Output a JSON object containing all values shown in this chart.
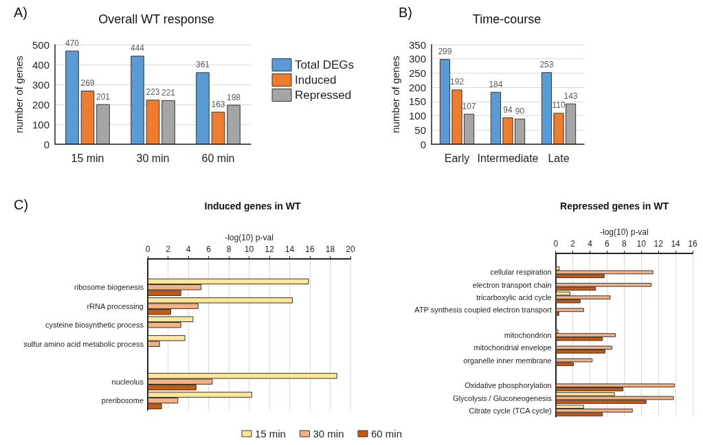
{
  "chart_data": [
    {
      "type": "bar",
      "title": "Overall WT response",
      "ylabel": "number of genes",
      "categories": [
        "15 min",
        "30 min",
        "60 min"
      ],
      "series": [
        {
          "name": "Total DEGs",
          "color": "#5b9bd5",
          "values": [
            470,
            444,
            361
          ]
        },
        {
          "name": "Induced",
          "color": "#ed7d31",
          "values": [
            269,
            223,
            163
          ]
        },
        {
          "name": "Repressed",
          "color": "#a5a5a5",
          "values": [
            201,
            221,
            198
          ]
        }
      ],
      "ylim": [
        0,
        500
      ],
      "yticks": [
        0,
        100,
        200,
        300,
        400,
        500
      ],
      "grid": "y",
      "legend": "right",
      "data_labels": true,
      "annotations": [
        "A)"
      ]
    },
    {
      "type": "bar",
      "title": "Time-course",
      "ylabel": "number of genes",
      "categories": [
        "Early",
        "Intermediate",
        "Late"
      ],
      "series": [
        {
          "color": "#5b9bd5",
          "values": [
            299,
            184,
            253
          ]
        },
        {
          "color": "#ed7d31",
          "values": [
            192,
            94,
            110
          ]
        },
        {
          "color": "#a5a5a5",
          "values": [
            107,
            90,
            143
          ]
        }
      ],
      "ylim": [
        0,
        350
      ],
      "yticks": [
        0,
        50,
        100,
        150,
        200,
        250,
        300,
        350
      ],
      "grid": "y",
      "data_labels": true,
      "annotations": [
        "B)"
      ]
    },
    {
      "type": "bar",
      "orientation": "horizontal",
      "title": "Induced genes in WT",
      "xlabel": "-log(10) p-val",
      "categories": [
        null,
        "ribosome biogenesis",
        "rRNA processing",
        "cysteine biosynthetic process",
        "sulfur amino acid metabolic process",
        null,
        "nucleolus",
        "preribosome"
      ],
      "series": [
        {
          "name": "15 min",
          "color": "#ffe699",
          "values": [
            null,
            15.9,
            14.3,
            4.5,
            3.7,
            null,
            18.7,
            10.3
          ]
        },
        {
          "name": "30 min",
          "color": "#f4b183",
          "values": [
            null,
            5.3,
            5.0,
            3.3,
            1.2,
            null,
            6.4,
            3.0
          ]
        },
        {
          "name": "60 min",
          "color": "#c55a11",
          "values": [
            null,
            3.3,
            2.3,
            null,
            null,
            null,
            4.8,
            1.4
          ]
        }
      ],
      "xlim": [
        0,
        20
      ],
      "xticks": [
        0,
        2,
        4,
        6,
        8,
        10,
        12,
        14,
        16,
        18,
        20
      ],
      "grid": "x",
      "legend": "bottom",
      "annotations": [
        "C)"
      ]
    },
    {
      "type": "bar",
      "orientation": "horizontal",
      "title": "Repressed genes in WT",
      "xlabel": "-log(10) p-val",
      "categories": [
        null,
        "cellular respiration",
        "electron transport chain",
        "tricarboxylic acid cycle",
        "ATP synthesis coupled electron transport",
        null,
        "mitochondrion",
        "mitochondrial envelope",
        "organelle inner membrane",
        null,
        "Oxidative phosphorylation",
        "Glycolysis / Gluconeogenesis",
        "Citrate cycle (TCA cycle)"
      ],
      "series": [
        {
          "color": "#ffe699",
          "values": [
            null,
            0.45,
            null,
            1.7,
            null,
            null,
            0.3,
            null,
            null,
            null,
            null,
            6.9,
            3.3
          ]
        },
        {
          "color": "#f4b183",
          "values": [
            null,
            11.4,
            11.2,
            6.4,
            3.3,
            null,
            7.0,
            6.6,
            4.3,
            null,
            13.9,
            13.8,
            9.0
          ]
        },
        {
          "color": "#c55a11",
          "values": [
            null,
            5.7,
            4.7,
            2.9,
            0.4,
            null,
            5.5,
            5.8,
            2.1,
            null,
            7.9,
            10.6,
            5.5
          ]
        }
      ],
      "xlim": [
        0,
        16
      ],
      "xticks": [
        0,
        2,
        4,
        6,
        8,
        10,
        12,
        14,
        16
      ],
      "grid": "x"
    }
  ]
}
